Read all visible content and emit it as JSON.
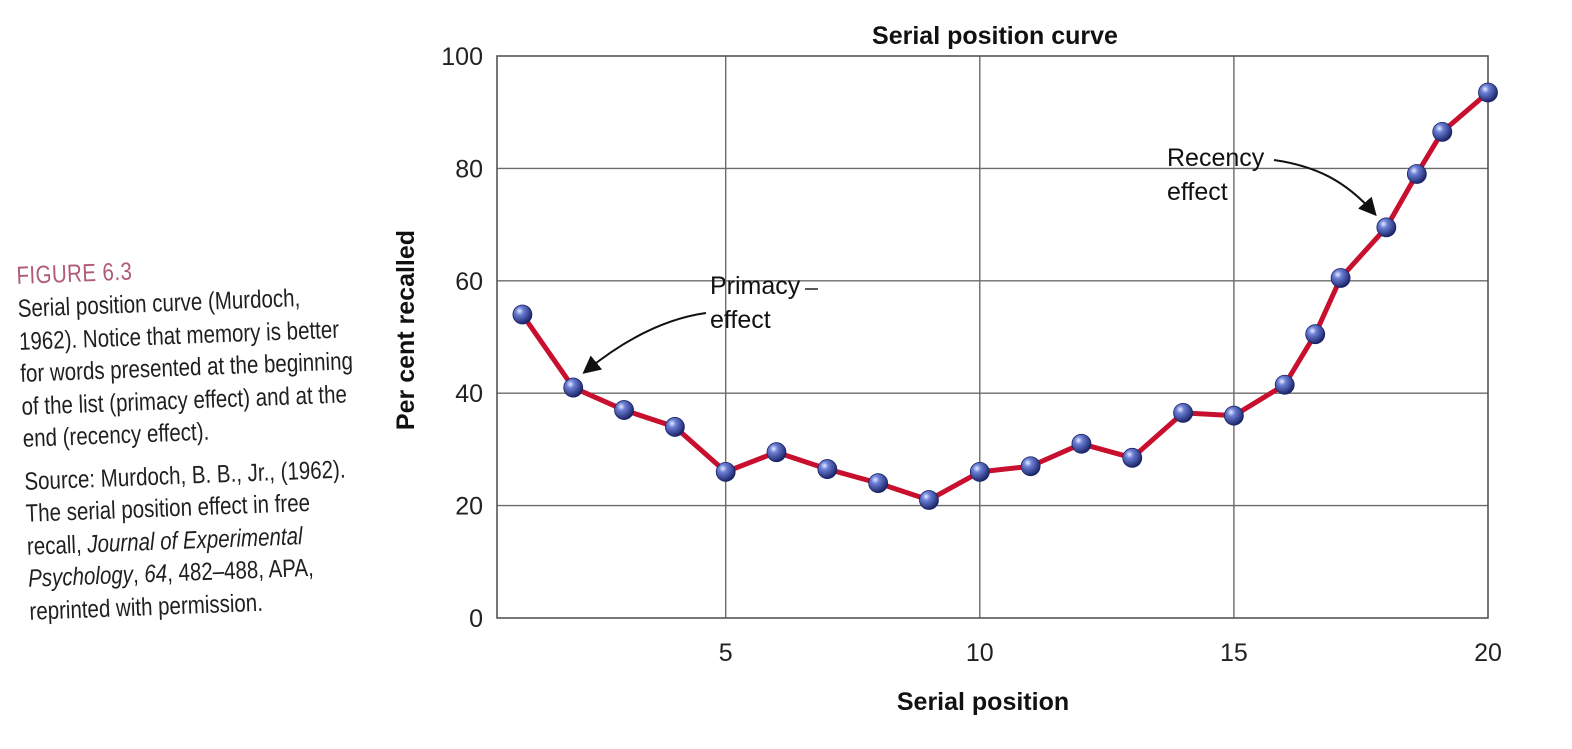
{
  "caption": {
    "figure_label": "FIGURE 6.3",
    "text": "Serial position curve (Murdoch, 1962). Notice that memory is better for words presented at the beginning of the list (primacy effect) and at the end (recency effect).",
    "source_prefix": "Source: Murdoch, B. B., Jr., (1962). The serial position effect in free recall, ",
    "source_journal": "Journal of Experimental Psychology",
    "source_volume": "64",
    "source_suffix": ", 482–488, APA, reprinted with permission."
  },
  "chart_data": {
    "type": "line",
    "title": "Serial position curve",
    "xlabel": "Serial position",
    "ylabel": "Per cent recalled",
    "xlim": [
      0.5,
      20
    ],
    "ylim": [
      0,
      100
    ],
    "xticks": [
      5,
      10,
      15,
      20
    ],
    "yticks": [
      0,
      20,
      40,
      60,
      80,
      100
    ],
    "grid": true,
    "series": [
      {
        "x": [
          1,
          2,
          3,
          4,
          5,
          6,
          7,
          8,
          9,
          10,
          11,
          12,
          13,
          14,
          15,
          16,
          16.6,
          17.1,
          18,
          18.6,
          19.1,
          20
        ],
        "y": [
          54,
          41,
          37,
          34,
          26,
          29.5,
          26.5,
          24,
          21,
          26,
          27,
          31,
          28.5,
          36.5,
          36,
          41.5,
          50.5,
          60.5,
          69.5,
          79,
          86.5,
          93.5
        ],
        "line_color": "#c8102e",
        "marker_color": "#2f3f99"
      }
    ],
    "annotations": [
      {
        "line1": "Primacy",
        "line2": "effect",
        "target_x": 2
      },
      {
        "line1": "Recency",
        "line2": "effect",
        "target_x": 18
      }
    ]
  }
}
